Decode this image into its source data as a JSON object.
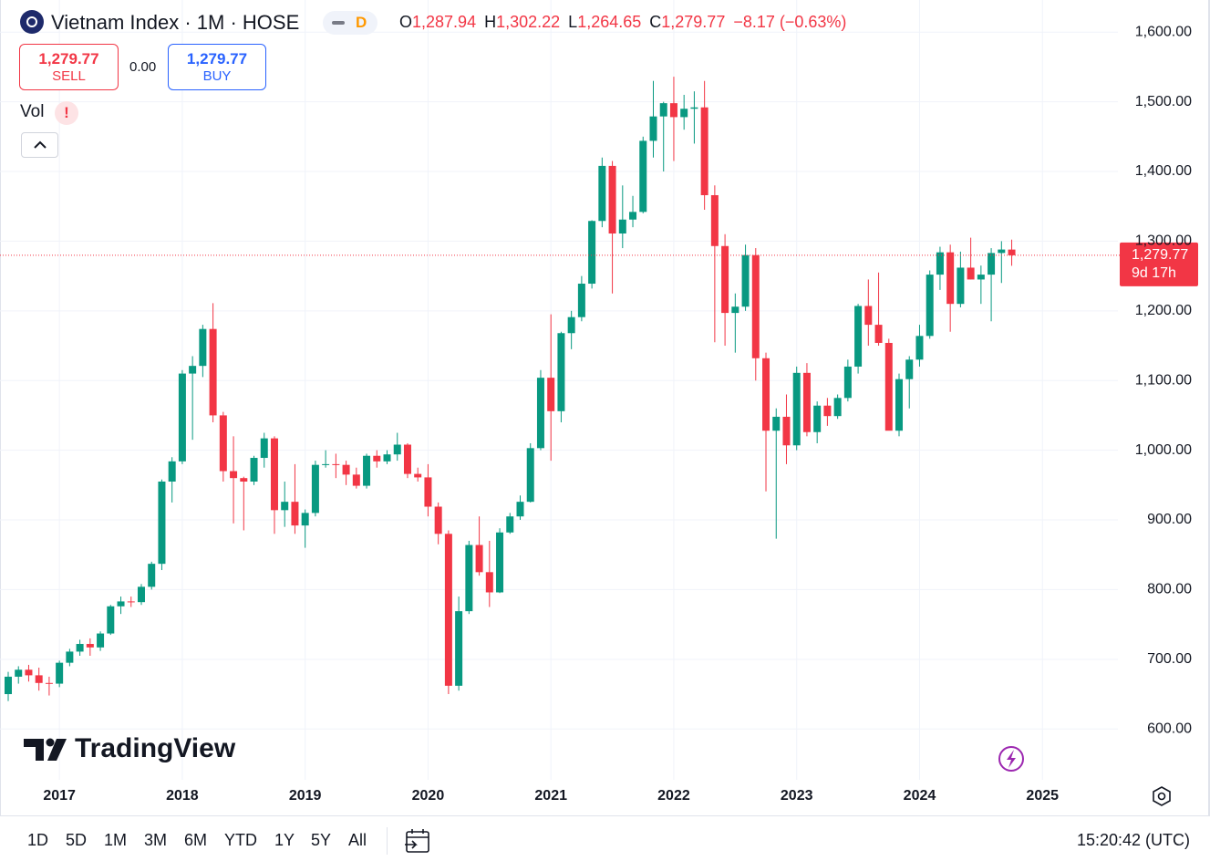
{
  "header": {
    "title": "Vietnam Index · 1M · HOSE",
    "badge": "D",
    "ohlc": [
      {
        "label": "O",
        "value": "1,287.94"
      },
      {
        "label": "H",
        "value": "1,302.22"
      },
      {
        "label": "L",
        "value": "1,264.65"
      },
      {
        "label": "C",
        "value": "1,279.77"
      }
    ],
    "change": "−8.17 (−0.63%)"
  },
  "trade": {
    "sell_price": "1,279.77",
    "sell_label": "SELL",
    "spread": "0.00",
    "buy_price": "1,279.77",
    "buy_label": "BUY"
  },
  "indicator": {
    "name": "Vol",
    "warning": "!"
  },
  "brand": "TradingView",
  "chart_data": {
    "type": "candlestick",
    "x": [
      "2016-08",
      "2016-09",
      "2016-10",
      "2016-11",
      "2016-12",
      "2017-01",
      "2017-02",
      "2017-03",
      "2017-04",
      "2017-05",
      "2017-06",
      "2017-07",
      "2017-08",
      "2017-09",
      "2017-10",
      "2017-11",
      "2017-12",
      "2018-01",
      "2018-02",
      "2018-03",
      "2018-04",
      "2018-05",
      "2018-06",
      "2018-07",
      "2018-08",
      "2018-09",
      "2018-10",
      "2018-11",
      "2018-12",
      "2019-01",
      "2019-02",
      "2019-03",
      "2019-04",
      "2019-05",
      "2019-06",
      "2019-07",
      "2019-08",
      "2019-09",
      "2019-10",
      "2019-11",
      "2019-12",
      "2020-01",
      "2020-02",
      "2020-03",
      "2020-04",
      "2020-05",
      "2020-06",
      "2020-07",
      "2020-08",
      "2020-09",
      "2020-10",
      "2020-11",
      "2020-12",
      "2021-01",
      "2021-02",
      "2021-03",
      "2021-04",
      "2021-05",
      "2021-06",
      "2021-07",
      "2021-08",
      "2021-09",
      "2021-10",
      "2021-11",
      "2021-12",
      "2022-01",
      "2022-02",
      "2022-03",
      "2022-04",
      "2022-05",
      "2022-06",
      "2022-07",
      "2022-08",
      "2022-09",
      "2022-10",
      "2022-11",
      "2022-12",
      "2023-01",
      "2023-02",
      "2023-03",
      "2023-04",
      "2023-05",
      "2023-06",
      "2023-07",
      "2023-08",
      "2023-09",
      "2023-10",
      "2023-11",
      "2023-12",
      "2024-01",
      "2024-02",
      "2024-03",
      "2024-04",
      "2024-05",
      "2024-06",
      "2024-07",
      "2024-08",
      "2024-09",
      "2024-10"
    ],
    "open": [
      650,
      675,
      685,
      677,
      666,
      665,
      695,
      711,
      722,
      717,
      737,
      776,
      783,
      782,
      804,
      837,
      955,
      984,
      1110,
      1121,
      1174,
      1050,
      970,
      960,
      955,
      989,
      1017,
      914,
      926,
      892,
      910,
      979,
      980,
      979,
      965,
      949,
      992,
      984,
      994,
      1008,
      966,
      961,
      919,
      880,
      662,
      769,
      864,
      825,
      796,
      882,
      905,
      926,
      1003,
      1104,
      1056,
      1168,
      1191,
      1239,
      1329,
      1408,
      1311,
      1331,
      1342,
      1444,
      1479,
      1498,
      1478,
      1490,
      1492,
      1366,
      1293,
      1197,
      1206,
      1280,
      1132,
      1028,
      1048,
      1007,
      1111,
      1026,
      1064,
      1049,
      1075,
      1120,
      1207,
      1180,
      1154,
      1028,
      1102,
      1130,
      1164,
      1252,
      1284,
      1210,
      1262,
      1245,
      1252,
      1283,
      1287.94
    ],
    "high": [
      682,
      690,
      692,
      688,
      675,
      698,
      715,
      728,
      730,
      740,
      778,
      790,
      790,
      808,
      840,
      958,
      990,
      1115,
      1135,
      1180,
      1211,
      1055,
      1020,
      962,
      992,
      1025,
      1020,
      955,
      980,
      915,
      985,
      1000,
      995,
      985,
      975,
      995,
      1000,
      1000,
      1025,
      1010,
      975,
      980,
      925,
      885,
      790,
      870,
      905,
      870,
      888,
      910,
      935,
      1010,
      1115,
      1195,
      1170,
      1200,
      1250,
      1330,
      1420,
      1415,
      1380,
      1365,
      1450,
      1530,
      1500,
      1536,
      1510,
      1515,
      1530,
      1380,
      1310,
      1225,
      1295,
      1290,
      1140,
      1060,
      1080,
      1120,
      1125,
      1070,
      1075,
      1080,
      1130,
      1210,
      1245,
      1255,
      1160,
      1110,
      1135,
      1180,
      1258,
      1292,
      1295,
      1285,
      1305,
      1265,
      1290,
      1300,
      1302.22
    ],
    "low": [
      640,
      665,
      668,
      655,
      648,
      660,
      690,
      705,
      705,
      712,
      735,
      765,
      775,
      778,
      800,
      828,
      925,
      980,
      1015,
      1105,
      1040,
      955,
      895,
      885,
      950,
      975,
      880,
      890,
      880,
      860,
      905,
      975,
      960,
      950,
      945,
      945,
      975,
      980,
      985,
      960,
      955,
      905,
      865,
      650,
      655,
      765,
      820,
      775,
      795,
      880,
      900,
      925,
      1000,
      985,
      1040,
      1145,
      1185,
      1232,
      1320,
      1225,
      1290,
      1320,
      1340,
      1420,
      1400,
      1415,
      1460,
      1440,
      1345,
      1155,
      1150,
      1140,
      1200,
      1100,
      941,
      873,
      980,
      1000,
      1020,
      1010,
      1035,
      1045,
      1070,
      1110,
      1150,
      1150,
      1030,
      1020,
      1060,
      1120,
      1160,
      1230,
      1170,
      1205,
      1245,
      1210,
      1185,
      1240,
      1264.65
    ],
    "close": [
      675,
      685,
      677,
      666,
      665,
      695,
      711,
      722,
      717,
      737,
      776,
      783,
      782,
      804,
      837,
      955,
      984,
      1110,
      1121,
      1174,
      1050,
      970,
      960,
      955,
      989,
      1017,
      914,
      926,
      892,
      910,
      979,
      980,
      979,
      965,
      949,
      992,
      984,
      994,
      1008,
      966,
      961,
      919,
      880,
      662,
      769,
      864,
      825,
      796,
      882,
      905,
      926,
      1003,
      1104,
      1056,
      1168,
      1191,
      1239,
      1329,
      1408,
      1311,
      1331,
      1342,
      1444,
      1479,
      1498,
      1478,
      1490,
      1492,
      1366,
      1293,
      1197,
      1206,
      1280,
      1132,
      1028,
      1048,
      1007,
      1111,
      1026,
      1064,
      1049,
      1075,
      1120,
      1207,
      1180,
      1154,
      1028,
      1102,
      1130,
      1164,
      1252,
      1284,
      1210,
      1262,
      1245,
      1252,
      1283,
      1288,
      1279.77
    ],
    "up_color": "#089981",
    "down_color": "#f23645",
    "ylim": [
      527,
      1633
    ],
    "yticks": [
      {
        "value": 600,
        "label": "600.00"
      },
      {
        "value": 700,
        "label": "700.00"
      },
      {
        "value": 800,
        "label": "800.00"
      },
      {
        "value": 900,
        "label": "900.00"
      },
      {
        "value": 1000,
        "label": "1,000.00"
      },
      {
        "value": 1100,
        "label": "1,100.00"
      },
      {
        "value": 1200,
        "label": "1,200.00"
      },
      {
        "value": 1300,
        "label": "1,300.00"
      },
      {
        "value": 1400,
        "label": "1,400.00"
      },
      {
        "value": 1500,
        "label": "1,500.00"
      },
      {
        "value": 1600,
        "label": "1,600.00"
      }
    ],
    "xticks": [
      {
        "value": "2017-01",
        "label": "2017"
      },
      {
        "value": "2018-01",
        "label": "2018"
      },
      {
        "value": "2019-01",
        "label": "2019"
      },
      {
        "value": "2020-01",
        "label": "2020"
      },
      {
        "value": "2021-01",
        "label": "2021"
      },
      {
        "value": "2022-01",
        "label": "2022"
      },
      {
        "value": "2023-01",
        "label": "2023"
      },
      {
        "value": "2024-01",
        "label": "2024"
      },
      {
        "value": "2025-01",
        "label": "2025"
      }
    ],
    "grid": true,
    "last_value_label": "1,279.77",
    "countdown": "9d 17h"
  },
  "toolbar": {
    "ranges": [
      "1D",
      "5D",
      "1M",
      "3M",
      "6M",
      "YTD",
      "1Y",
      "5Y",
      "All"
    ],
    "clock": "15:20:42 (UTC)"
  }
}
